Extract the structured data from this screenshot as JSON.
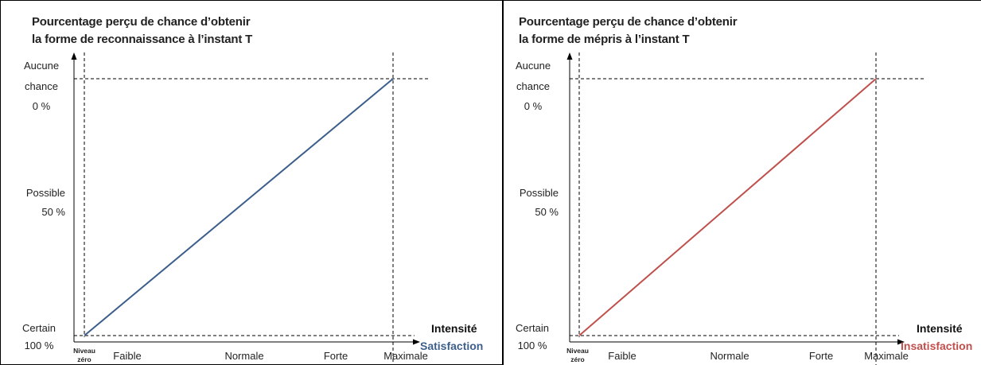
{
  "chart_data": [
    {
      "type": "line",
      "title_line1": "Pourcentage perçu de chance d’obtenir",
      "title_line2": "la forme de reconnaissance à l’instant T",
      "xlabel": "Intensité",
      "x_categories": [
        "Niveau zéro",
        "Faible",
        "Normale",
        "Forte",
        "Maximale"
      ],
      "x_zero_line1": "Niveau",
      "x_zero_line2": "zéro",
      "y_ticks": [
        {
          "line1": "Aucune",
          "line2": "chance",
          "line3": "0 %",
          "value": 0
        },
        {
          "line1": "Possible",
          "line2": "50 %",
          "value": 50
        },
        {
          "line1": "Certain",
          "line2": "100 %",
          "value": 100
        }
      ],
      "series": [
        {
          "name": "Satisfaction",
          "color": "#3d5f8c",
          "x": [
            0,
            4
          ],
          "y": [
            100,
            0
          ]
        }
      ],
      "xlim": [
        0,
        4
      ],
      "ylim": [
        100,
        0
      ]
    },
    {
      "type": "line",
      "title_line1": "Pourcentage perçu de chance d’obtenir",
      "title_line2": "la forme de mépris à l’instant T",
      "xlabel": "Intensité",
      "x_categories": [
        "Niveau zéro",
        "Faible",
        "Normale",
        "Forte",
        "Maximale"
      ],
      "x_zero_line1": "Niveau",
      "x_zero_line2": "zéro",
      "y_ticks": [
        {
          "line1": "Aucune",
          "line2": "chance",
          "line3": "0 %",
          "value": 0
        },
        {
          "line1": "Possible",
          "line2": "50 %",
          "value": 50
        },
        {
          "line1": "Certain",
          "line2": "100 %",
          "value": 100
        }
      ],
      "series": [
        {
          "name": "Insatisfaction",
          "color": "#c0504d",
          "x": [
            0,
            4
          ],
          "y": [
            100,
            0
          ]
        }
      ],
      "xlim": [
        0,
        4
      ],
      "ylim": [
        100,
        0
      ]
    }
  ]
}
